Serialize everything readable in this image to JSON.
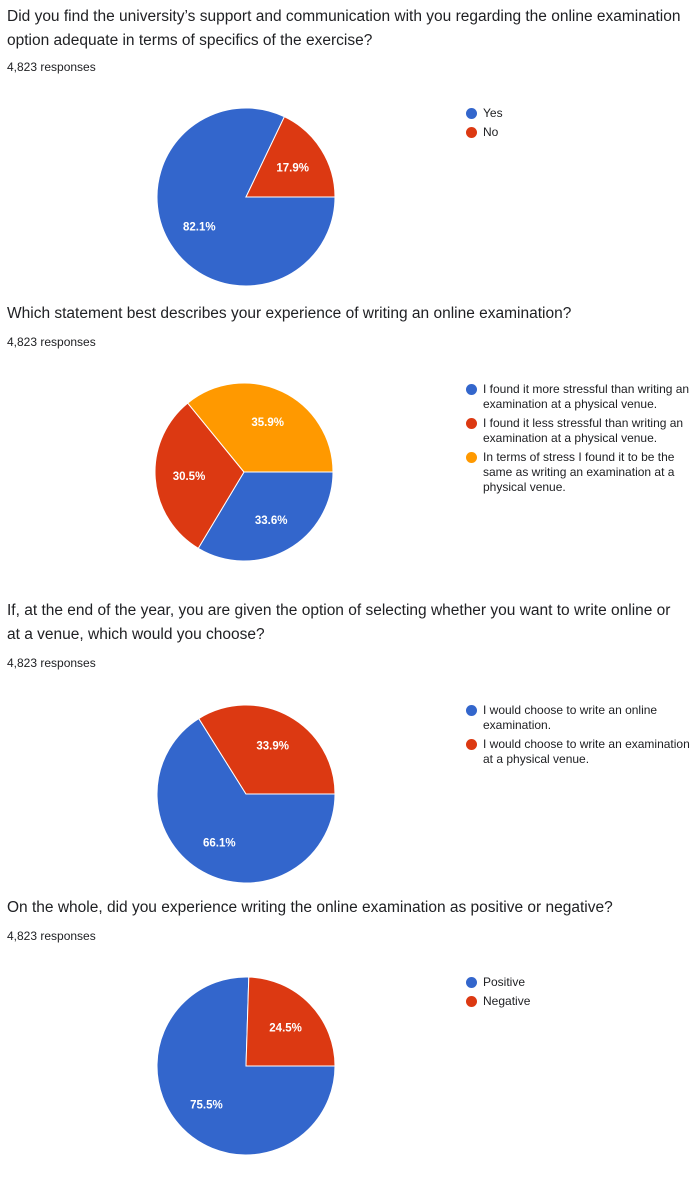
{
  "chart_data": [
    {
      "type": "pie",
      "title": "Did you find the university’s support and communication with you regarding the online examination option adequate in terms of specifics of the exercise?",
      "subtitle": "4,823 responses",
      "categories": [
        "Yes",
        "No"
      ],
      "values": [
        82.1,
        17.9
      ],
      "labels": [
        "82.1%",
        "17.9%"
      ],
      "colors": [
        "#3366cc",
        "#dc3912"
      ],
      "legend": "right"
    },
    {
      "type": "pie",
      "title": "Which statement best describes your experience of writing an online examination?",
      "subtitle": "4,823 responses",
      "categories": [
        "I found it more stressful than writing an examination at a physical venue.",
        "I found it less stressful than writing an examination at a physical venue.",
        "In terms of stress I found it to be the same as writing an examination at a physical venue."
      ],
      "values": [
        33.6,
        30.5,
        35.9
      ],
      "labels": [
        "33.6%",
        "30.5%",
        "35.9%"
      ],
      "colors": [
        "#3366cc",
        "#dc3912",
        "#ff9900"
      ],
      "legend": "right"
    },
    {
      "type": "pie",
      "title": "If, at the end of the year, you are given the option of selecting whether you want to write online or at a venue, which would you choose?",
      "subtitle": "4,823 responses",
      "categories": [
        "I would choose to write an online examination.",
        "I would choose to write an examination at a physical venue."
      ],
      "values": [
        66.1,
        33.9
      ],
      "labels": [
        "66.1%",
        "33.9%"
      ],
      "colors": [
        "#3366cc",
        "#dc3912"
      ],
      "legend": "right"
    },
    {
      "type": "pie",
      "title": "On the whole, did you experience writing the online examination as positive or negative?",
      "subtitle": "4,823 responses",
      "categories": [
        "Positive",
        "Negative"
      ],
      "values": [
        75.5,
        24.5
      ],
      "labels": [
        "75.5%",
        "24.5%"
      ],
      "colors": [
        "#3366cc",
        "#dc3912"
      ],
      "legend": "right"
    }
  ]
}
